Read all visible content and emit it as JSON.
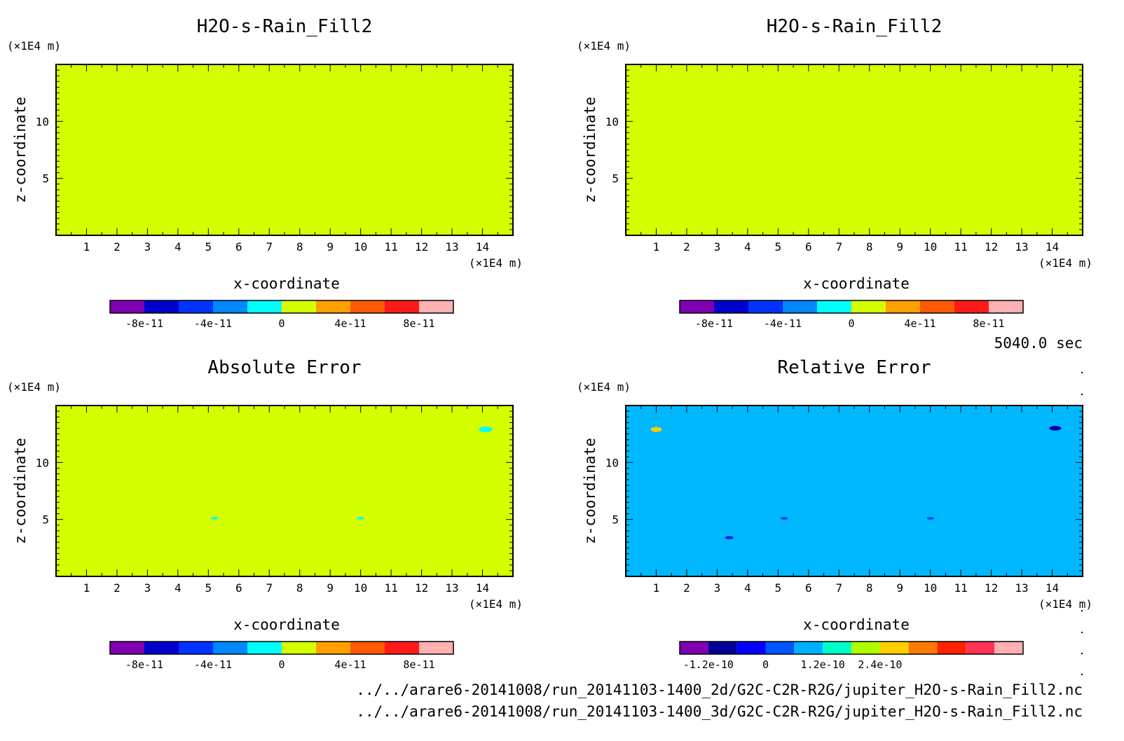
{
  "chart_data": [
    {
      "type": "heatmap",
      "title": "H2O-s-Rain_Fill2",
      "xlabel": "x-coordinate",
      "ylabel": "z-coordinate",
      "x_unit": "(×1E4 m)",
      "y_unit": "(×1E4 m)",
      "xlim": [
        0,
        15
      ],
      "ylim": [
        0,
        15
      ],
      "x_ticks": [
        "1",
        "2",
        "3",
        "4",
        "5",
        "6",
        "7",
        "8",
        "9",
        "10",
        "11",
        "12",
        "13",
        "14"
      ],
      "y_ticks": [
        "5",
        "10"
      ],
      "field_color": "#d4ff00",
      "features": [],
      "colorbar": {
        "colors": [
          "#7f00b0",
          "#0000cc",
          "#0033ff",
          "#0088ff",
          "#00ffff",
          "#d4ff00",
          "#ff9f00",
          "#ff5a00",
          "#ff1a1a",
          "#ffb0b0"
        ],
        "labels": [
          "-8e-11",
          "-4e-11",
          "0",
          "4e-11",
          "8e-11"
        ],
        "label_positions": [
          1,
          3,
          5,
          7,
          9
        ]
      }
    },
    {
      "type": "heatmap",
      "title": "H2O-s-Rain_Fill2",
      "xlabel": "x-coordinate",
      "ylabel": "z-coordinate",
      "x_unit": "(×1E4 m)",
      "y_unit": "(×1E4 m)",
      "xlim": [
        0,
        15
      ],
      "ylim": [
        0,
        15
      ],
      "x_ticks": [
        "1",
        "2",
        "3",
        "4",
        "5",
        "6",
        "7",
        "8",
        "9",
        "10",
        "11",
        "12",
        "13",
        "14"
      ],
      "y_ticks": [
        "5",
        "10"
      ],
      "field_color": "#d4ff00",
      "features": [],
      "colorbar": {
        "colors": [
          "#7f00b0",
          "#0000cc",
          "#0033ff",
          "#0088ff",
          "#00ffff",
          "#d4ff00",
          "#ff9f00",
          "#ff5a00",
          "#ff1a1a",
          "#ffb0b0"
        ],
        "labels": [
          "-8e-11",
          "-4e-11",
          "0",
          "4e-11",
          "8e-11"
        ],
        "label_positions": [
          1,
          3,
          5,
          7,
          9
        ]
      }
    },
    {
      "type": "heatmap",
      "title": "Absolute Error",
      "xlabel": "x-coordinate",
      "ylabel": "z-coordinate",
      "x_unit": "(×1E4 m)",
      "y_unit": "(×1E4 m)",
      "xlim": [
        0,
        15
      ],
      "ylim": [
        0,
        15
      ],
      "x_ticks": [
        "1",
        "2",
        "3",
        "4",
        "5",
        "6",
        "7",
        "8",
        "9",
        "10",
        "11",
        "12",
        "13",
        "14"
      ],
      "y_ticks": [
        "5",
        "10"
      ],
      "field_color": "#d4ff00",
      "features": [
        {
          "x": 14.1,
          "z": 12.9,
          "rx": 0.22,
          "rz": 0.25,
          "color": "#00ffff"
        },
        {
          "x": 5.2,
          "z": 5.1,
          "rx": 0.12,
          "rz": 0.12,
          "color": "#00ffff"
        },
        {
          "x": 10.0,
          "z": 5.1,
          "rx": 0.12,
          "rz": 0.12,
          "color": "#00ffff"
        }
      ],
      "colorbar": {
        "colors": [
          "#7f00b0",
          "#0000cc",
          "#0033ff",
          "#0088ff",
          "#00ffff",
          "#d4ff00",
          "#ff9f00",
          "#ff5a00",
          "#ff1a1a",
          "#ffb0b0"
        ],
        "labels": [
          "-8e-11",
          "-4e-11",
          "0",
          "4e-11",
          "8e-11"
        ],
        "label_positions": [
          1,
          3,
          5,
          7,
          9
        ]
      }
    },
    {
      "type": "heatmap",
      "title": "Relative Error",
      "xlabel": "x-coordinate",
      "ylabel": "z-coordinate",
      "x_unit": "(×1E4 m)",
      "y_unit": "(×1E4 m)",
      "xlim": [
        0,
        15
      ],
      "ylim": [
        0,
        15
      ],
      "x_ticks": [
        "1",
        "2",
        "3",
        "4",
        "5",
        "6",
        "7",
        "8",
        "9",
        "10",
        "11",
        "12",
        "13",
        "14"
      ],
      "y_ticks": [
        "5",
        "10"
      ],
      "field_color": "#00b8ff",
      "features": [
        {
          "x": 1.0,
          "z": 12.9,
          "rx": 0.18,
          "rz": 0.22,
          "color": "#ffcc00"
        },
        {
          "x": 14.1,
          "z": 13.0,
          "rx": 0.2,
          "rz": 0.2,
          "color": "#0000aa"
        },
        {
          "x": 5.2,
          "z": 5.1,
          "rx": 0.12,
          "rz": 0.12,
          "color": "#0044ff"
        },
        {
          "x": 10.0,
          "z": 5.1,
          "rx": 0.12,
          "rz": 0.12,
          "color": "#0044ff"
        },
        {
          "x": 3.4,
          "z": 3.4,
          "rx": 0.14,
          "rz": 0.14,
          "color": "#0022ee"
        }
      ],
      "colorbar": {
        "colors": [
          "#7f00b0",
          "#000099",
          "#0000ff",
          "#0055ff",
          "#00b0ff",
          "#00ffc8",
          "#b0ff00",
          "#ffd000",
          "#ff7a00",
          "#ff2200",
          "#ff3355",
          "#ffb0b0"
        ],
        "labels": [
          "-1.2e-10",
          "0",
          "1.2e-10",
          "2.4e-10"
        ],
        "label_positions": [
          1,
          3,
          5,
          7
        ]
      }
    }
  ],
  "time_label": "5040.0 sec",
  "files": [
    "../../arare6-20141008/run_20141103-1400_2d/G2C-C2R-R2G/jupiter_H2O-s-Rain_Fill2.nc",
    "../../arare6-20141008/run_20141103-1400_3d/G2C-C2R-R2G/jupiter_H2O-s-Rain_Fill2.nc"
  ]
}
